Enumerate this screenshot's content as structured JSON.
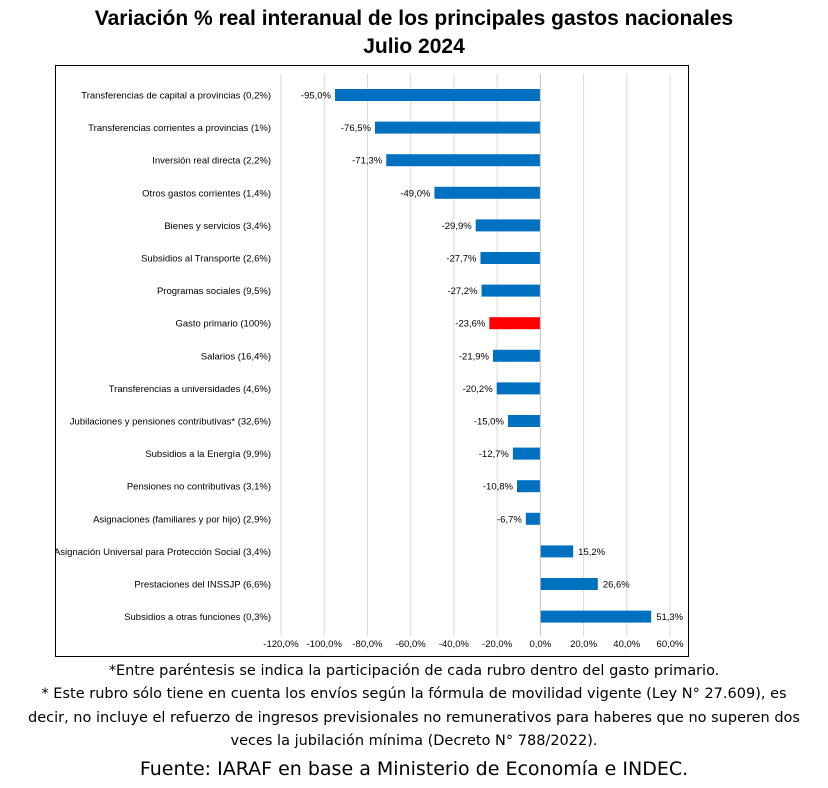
{
  "title_line1": "Variación % real interanual de los principales gastos nacionales",
  "title_line2": "Julio 2024",
  "notes": {
    "line1": "*Entre paréntesis se indica la participación de cada rubro dentro del gasto primario.",
    "line2": "* Este rubro sólo tiene en cuenta los envíos según la fórmula de movilidad vigente (Ley N° 27.609), es",
    "line3": "decir, no incluye el refuerzo de ingresos previsionales no remunerativos para haberes que no superen dos",
    "line4": "veces la jubilación mínima (Decreto N° 788/2022).",
    "source": "Fuente: IARAF en base a Ministerio de Economía e INDEC."
  },
  "chart_data": {
    "type": "bar",
    "orientation": "horizontal",
    "categories": [
      "Transferencias de capital a provincias (0,2%)",
      "Transferencias corrientes a provincias (1%)",
      "Inversión real directa (2,2%)",
      "Otros gastos corrientes (1,4%)",
      "Bienes y servicios (3,4%)",
      "Subsidios al Transporte (2,6%)",
      "Programas sociales (9,5%)",
      "Gasto primario (100%)",
      "Salarios (16,4%)",
      "Transferencias a universidades (4,6%)",
      "Jubilaciones y pensiones contributivas* (32,6%)",
      "Subsidios a la Energía (9,9%)",
      "Pensiones no contributivas (3,1%)",
      "Asignaciones (familiares y por hijo) (2,9%)",
      "Asignación Universal para Protección Social (3,4%)",
      "Prestaciones del INSSJP (6,6%)",
      "Subsidios a otras funciones (0,3%)"
    ],
    "values": [
      -95.0,
      -76.5,
      -71.3,
      -49.0,
      -29.9,
      -27.7,
      -27.2,
      -23.6,
      -21.9,
      -20.2,
      -15.0,
      -12.7,
      -10.8,
      -6.7,
      15.2,
      26.6,
      51.3
    ],
    "data_labels": [
      "-95,0%",
      "-76,5%",
      "-71,3%",
      "-49,0%",
      "-29,9%",
      "-27,7%",
      "-27,2%",
      "-23,6%",
      "-21,9%",
      "-20,2%",
      "-15,0%",
      "-12,7%",
      "-10,8%",
      "-6,7%",
      "15,2%",
      "26,6%",
      "51,3%"
    ],
    "xlim": [
      -120,
      60
    ],
    "xticks": [
      -120,
      -100,
      -80,
      -60,
      -40,
      -20,
      0,
      20,
      40,
      60
    ],
    "xtick_labels": [
      "-120,0%",
      "-100,0%",
      "-80,0%",
      "-60,0%",
      "-40,0%",
      "-20,0%",
      "0,0%",
      "20,0%",
      "40,0%",
      "60,0%"
    ],
    "grid": "vertical",
    "bar_color": "#0070C0",
    "highlight_color": "#FF0000",
    "highlight_category": "Gasto primario (100%)",
    "legend": "none"
  }
}
